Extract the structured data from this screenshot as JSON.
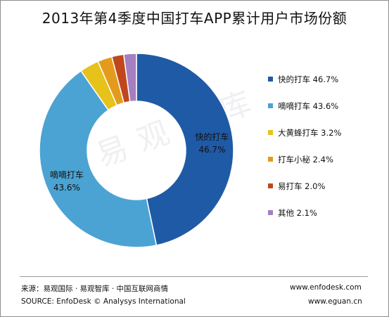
{
  "title": "2013年第4季度中国打车APP累计用户市场份额",
  "chart_data": {
    "type": "pie",
    "style": "donut",
    "title": "2013年第4季度中国打车APP累计用户市场份额",
    "series": [
      {
        "name": "快的打车",
        "value": 46.7,
        "color": "#1f5aa6",
        "legend": "快的打车 46.7%",
        "data_label_name": "快的打车",
        "data_label_value": "46.7%"
      },
      {
        "name": "嘀嘀打车",
        "value": 43.6,
        "color": "#4ba3d3",
        "legend": "嘀嘀打车 43.6%",
        "data_label_name": "嘀嘀打车",
        "data_label_value": "43.6%"
      },
      {
        "name": "大黄蜂打车",
        "value": 3.2,
        "color": "#e6c21a",
        "legend": "大黄蜂打车 3.2%"
      },
      {
        "name": "打车小秘",
        "value": 2.4,
        "color": "#e39b1d",
        "legend": "打车小秘 2.4%"
      },
      {
        "name": "易打车",
        "value": 2.0,
        "color": "#c0471c",
        "legend": "易打车 2.0%"
      },
      {
        "name": "其他",
        "value": 2.1,
        "color": "#a47fc1",
        "legend": "其他 2.1%"
      }
    ],
    "legend_position": "right",
    "grid": false
  },
  "watermark": "易观智库",
  "footer": {
    "source_cn": "来源：易观国际 · 易观智库 · 中国互联网商情",
    "source_en": "SOURCE: EnfoDesk © Analysys International",
    "url1": "www.enfodesk.com",
    "url2": "www.eguan.cn"
  }
}
